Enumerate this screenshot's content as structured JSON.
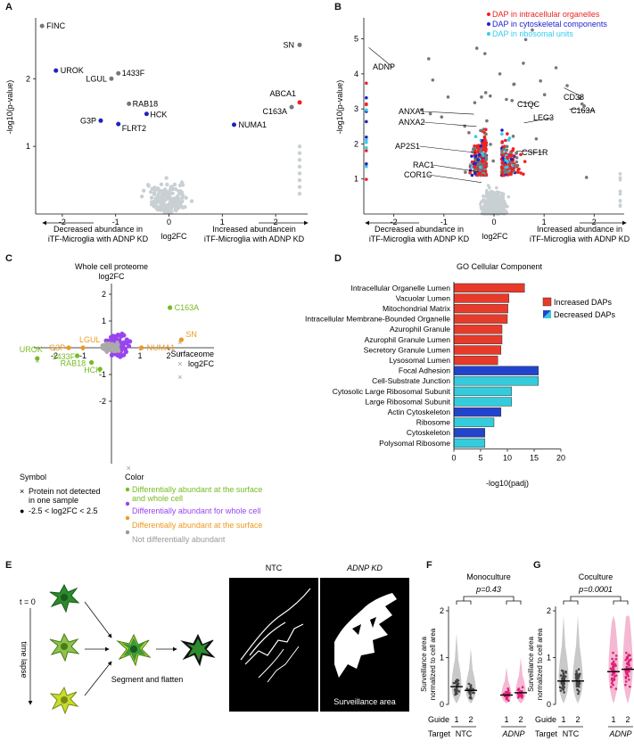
{
  "panels": {
    "A": {
      "letter": "A",
      "ylabel": "-log10(p-value)",
      "xlabel": "log2FC",
      "left_caption_1": "Decreased abundance in",
      "left_caption_2": "iTF-Microglia with ADNP KD",
      "right_caption_1": "Increased abundancein",
      "right_caption_2": "iTF-Microglia with ADNP KD",
      "chart_data": {
        "type": "scatter",
        "xlim": [
          -2.5,
          2.6
        ],
        "ylim": [
          0,
          2.9
        ],
        "xticks": [
          -2,
          -1,
          0,
          1,
          2
        ],
        "yticks": [
          1,
          2
        ],
        "points": [
          {
            "label": "FINC",
            "x": -2.38,
            "y": 2.78,
            "color": "#777777"
          },
          {
            "label": "UROK",
            "x": -2.12,
            "y": 2.12,
            "color": "#2222bb"
          },
          {
            "label": "1433F",
            "x": -0.95,
            "y": 2.08,
            "color": "#777777"
          },
          {
            "label": "LGUL",
            "x": -1.08,
            "y": 2.0,
            "color": "#777777"
          },
          {
            "label": "RAB18",
            "x": -0.75,
            "y": 1.63,
            "color": "#777777"
          },
          {
            "label": "HCK",
            "x": -0.42,
            "y": 1.48,
            "color": "#2222bb"
          },
          {
            "label": "G3P",
            "x": -1.28,
            "y": 1.38,
            "color": "#2222bb"
          },
          {
            "label": "FLRT2",
            "x": -0.95,
            "y": 1.33,
            "color": "#2222bb"
          },
          {
            "label": "SN",
            "x": 2.45,
            "y": 2.5,
            "color": "#777777"
          },
          {
            "label": "ABCA1",
            "x": 2.45,
            "y": 1.65,
            "color": "#ee2222"
          },
          {
            "label": "C163A",
            "x": 2.3,
            "y": 1.58,
            "color": "#777777"
          },
          {
            "label": "NUMA1",
            "x": 1.22,
            "y": 1.32,
            "color": "#2222bb"
          }
        ]
      }
    },
    "B": {
      "letter": "B",
      "ylabel": "-log10(p-value)",
      "xlabel": "log2FC",
      "left_caption_1": "Decreased abundance in",
      "left_caption_2": "iTF-Microglia with ADNP KD",
      "right_caption_1": "Increased abundance in",
      "right_caption_2": "iTF-Microglia with ADNP KD",
      "legend": [
        {
          "label": "DAP in intracellular organelles",
          "color": "#ee2222"
        },
        {
          "label": "DAP in cytoskeletal components",
          "color": "#2222cc"
        },
        {
          "label": "DAP in ribosomal units",
          "color": "#33ccee"
        }
      ],
      "chart_data": {
        "type": "scatter",
        "xlim": [
          -2.6,
          2.6
        ],
        "ylim": [
          0,
          5.6
        ],
        "xticks": [
          -2,
          -1,
          0,
          1,
          2
        ],
        "yticks": [
          1,
          2,
          3,
          4,
          5
        ],
        "labels": [
          {
            "label": "ADNP",
            "x": -2.5,
            "y": 4.75
          },
          {
            "label": "ANXA1",
            "x": -0.4,
            "y": 2.85
          },
          {
            "label": "ANXA2",
            "x": -0.35,
            "y": 2.5
          },
          {
            "label": "AP2S1",
            "x": -0.35,
            "y": 1.75
          },
          {
            "label": "RAC1",
            "x": -0.3,
            "y": 1.2
          },
          {
            "label": "COR1C",
            "x": -0.25,
            "y": 0.9
          },
          {
            "label": "C1QC",
            "x": 0.5,
            "y": 3.2
          },
          {
            "label": "LEG3",
            "x": 0.6,
            "y": 2.6
          },
          {
            "label": "CSF1R",
            "x": 0.45,
            "y": 1.8
          },
          {
            "label": "CD38",
            "x": 1.4,
            "y": 3.6
          },
          {
            "label": "C163A",
            "x": 1.5,
            "y": 3.0
          }
        ]
      }
    },
    "C": {
      "letter": "C",
      "title_1": "Whole cell proteome",
      "title_2": "log2FC",
      "right_label_1": "Surfaceome",
      "right_label_2": "log2FC",
      "chart_data": {
        "type": "scatter",
        "xlim": [
          -3,
          3
        ],
        "ylim": [
          -3,
          2.5
        ],
        "xticks": [
          -2,
          -1,
          1,
          2
        ],
        "yticks": [
          2,
          1,
          -1,
          -2
        ],
        "points": [
          {
            "label": "C163A",
            "x": 2.05,
            "y": 1.5,
            "color": "#77bb22"
          },
          {
            "label": "SN",
            "x": 2.45,
            "y": 0.3,
            "color": "#ee9922"
          },
          {
            "label": "NUMA1",
            "x": 1.05,
            "y": 0.0,
            "color": "#ee9922"
          },
          {
            "label": "LGUL",
            "x": -1.0,
            "y": 0.0,
            "color": "#ee9922"
          },
          {
            "label": "G3P",
            "x": -1.5,
            "y": 0.0,
            "color": "#ee9922"
          },
          {
            "label": "UROK",
            "x": -2.6,
            "y": -0.4,
            "color": "#77bb22"
          },
          {
            "label": "1433F",
            "x": -1.2,
            "y": -0.3,
            "color": "#77bb22"
          },
          {
            "label": "RAB18",
            "x": -0.7,
            "y": -0.55,
            "color": "#77bb22"
          },
          {
            "label": "HCK",
            "x": -0.4,
            "y": -0.8,
            "color": "#77bb22"
          }
        ]
      },
      "legend_symbol_title": "Symbol",
      "legend_color_title": "Color",
      "symbol_items": [
        {
          "glyph": "×",
          "text": "Protein not detected in one sample"
        },
        {
          "glyph": "●",
          "text": "-2.5 < log2FC < 2.5"
        }
      ],
      "color_items": [
        {
          "color": "#77bb22",
          "text": "Differentially abundant at the surface and whole cell"
        },
        {
          "color": "#9944ee",
          "text": "Differentially abundant for whole cell"
        },
        {
          "color": "#ee9922",
          "text": "Differentially abundant at the surface"
        },
        {
          "color": "#999999",
          "text": "Not differentially abundant"
        }
      ]
    },
    "D": {
      "letter": "D",
      "title": "GO Cellular Component",
      "xlabel": "-log10(padj)",
      "legend": [
        {
          "label": "Increased DAPs"
        },
        {
          "label": "Decreased DAPs"
        }
      ],
      "chart_data": {
        "type": "bar",
        "orientation": "horizontal",
        "xlim": [
          0,
          20
        ],
        "xticks": [
          0,
          5,
          10,
          15,
          20
        ],
        "categories": [
          "Intracellular Organelle Lumen",
          "Vacuolar Lumen",
          "Mitochondrial Matrix",
          "Intracellular Membrane-Bounded Organelle",
          "Azurophil Granule",
          "Azurophil Granule Lumen",
          "Secretory Granule Lumen",
          "Lysosomal Lumen",
          "Focal Adhesion",
          "Cell-Substrate Junction",
          "Cytosolic Large Ribosomal Subunit",
          "Large Ribosomal Subunit",
          "Actin Cytoskeleton",
          "Ribosome",
          "Cytoskeleton",
          "Polysomal Ribosome"
        ],
        "values": [
          13.2,
          10.3,
          10.1,
          10.0,
          9.0,
          9.0,
          8.8,
          8.2,
          15.8,
          15.8,
          10.8,
          10.8,
          8.8,
          7.5,
          5.8,
          5.8
        ],
        "colors": [
          "#e83a2a",
          "#e83a2a",
          "#e83a2a",
          "#e83a2a",
          "#e83a2a",
          "#e83a2a",
          "#e83a2a",
          "#e83a2a",
          "#2244cc",
          "#33ccdd",
          "#33ccdd",
          "#33ccdd",
          "#2244cc",
          "#33ccdd",
          "#2244cc",
          "#33ccdd"
        ]
      }
    },
    "E": {
      "letter": "E",
      "t0_label": "t = 0",
      "timelapse_label": "time lapse",
      "segment_label": "Segment and flatten",
      "ntc_label": "NTC",
      "kd_label": "ADNP KD",
      "surveillance_label": "Surveillance area"
    },
    "F": {
      "letter": "F",
      "title": "Monoculture",
      "pvalue": "p=0.43",
      "ylabel_1": "Surveillance area",
      "ylabel_2": "normalized to cell area",
      "guide_label": "Guide",
      "target_label": "Target",
      "guides": [
        "1",
        "2",
        "1",
        "2"
      ],
      "targets": [
        "NTC",
        "ADNP"
      ],
      "chart_data": {
        "type": "scatter",
        "ylim": [
          0,
          2
        ],
        "yticks": [
          0,
          1,
          2
        ],
        "medians": [
          0.38,
          0.3,
          0.2,
          0.25
        ]
      }
    },
    "G": {
      "letter": "G",
      "title": "Coculture",
      "pvalue": "p=0.0001",
      "ylabel_1": "Surveillance area",
      "ylabel_2": "normalized to cell area",
      "guide_label": "Guide",
      "target_label": "Target",
      "guides": [
        "1",
        "2",
        "1",
        "2"
      ],
      "targets": [
        "NTC",
        "ADNP"
      ],
      "chart_data": {
        "type": "scatter",
        "ylim": [
          0,
          2
        ],
        "yticks": [
          0,
          1,
          2
        ],
        "medians": [
          0.5,
          0.5,
          0.7,
          0.75
        ]
      }
    }
  },
  "colors": {
    "grey_dot": "#c8d0d4",
    "dark_grey": "#777777",
    "red": "#ee2222",
    "blue": "#2222bb",
    "cyan": "#33ccee",
    "purple": "#9944ee",
    "green": "#77bb22",
    "orange": "#ee9922",
    "pink": "#dd2277"
  }
}
